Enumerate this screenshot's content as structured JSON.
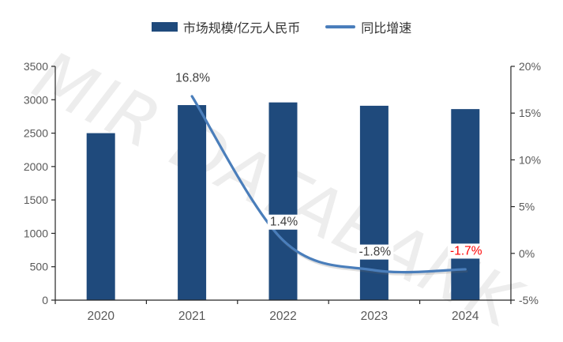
{
  "watermark": {
    "text": "MIR DATABANK"
  },
  "legend": {
    "items": [
      {
        "label": "市场规模/亿元人民币",
        "type": "bar",
        "color": "#1F4A7C"
      },
      {
        "label": "同比增速",
        "type": "line",
        "color": "#4A7EBB"
      }
    ]
  },
  "chart_data": {
    "type": "bar",
    "subtype": "bar+line combo, dual axis",
    "categories": [
      "2020",
      "2021",
      "2022",
      "2023",
      "2024"
    ],
    "series": [
      {
        "name": "市场规模/亿元人民币",
        "type": "bar",
        "axis": "left",
        "color": "#1F4A7C",
        "values": [
          2500,
          2920,
          2960,
          2910,
          2860
        ]
      },
      {
        "name": "同比增速",
        "type": "line",
        "axis": "right",
        "color": "#4A7EBB",
        "values": [
          null,
          16.8,
          1.4,
          -1.8,
          -1.7
        ],
        "labels": [
          null,
          "16.8%",
          "1.4%",
          "-1.8%",
          "-1.7%"
        ],
        "label_colors": [
          null,
          "#404040",
          "#404040",
          "#404040",
          "#FF0000"
        ]
      }
    ],
    "left_axis": {
      "min": 0,
      "max": 3500,
      "step": 500,
      "tick_values": [
        0,
        500,
        1000,
        1500,
        2000,
        2500,
        3000,
        3500
      ],
      "tick_labels": [
        "0",
        "500",
        "1000",
        "1500",
        "2000",
        "2500",
        "3000",
        "3500"
      ]
    },
    "right_axis": {
      "min": -5,
      "max": 20,
      "step": 5,
      "tick_values": [
        -5,
        0,
        5,
        10,
        15,
        20
      ],
      "tick_labels": [
        "-5%",
        "0%",
        "5%",
        "10%",
        "15%",
        "20%"
      ]
    },
    "grid": false,
    "legend_position": "top",
    "axis_color": "#262626",
    "tick_label_color": "#595959"
  }
}
